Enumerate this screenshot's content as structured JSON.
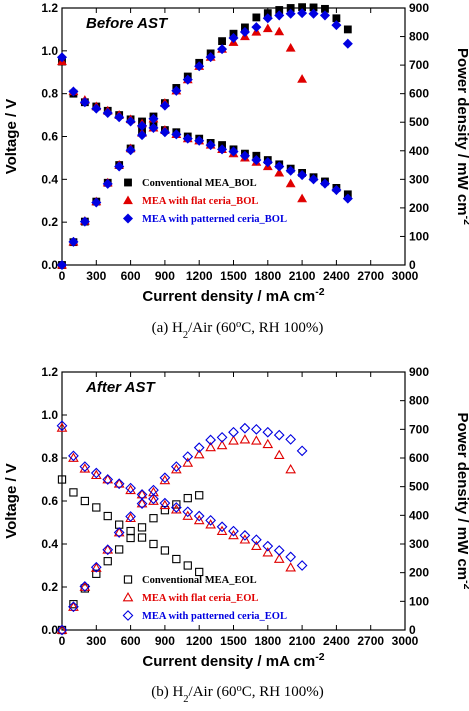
{
  "chart_data": [
    {
      "type": "scatter",
      "panel_label": "Before AST",
      "caption": {
        "pre": "(a) H",
        "sub": "2",
        "mid": "/Air (60",
        "sup": "o",
        "post": "C, RH 100%)"
      },
      "xlabel": {
        "main": "Current density / mA cm",
        "sup": "-2"
      },
      "ylabel": "Voltage / V",
      "y2label": {
        "main": "Power density / mW cm",
        "sup": "-2"
      },
      "xlim": [
        0,
        3000
      ],
      "ylim": [
        0,
        1.2
      ],
      "y2lim": [
        0,
        900
      ],
      "xticks": [
        "0",
        "300",
        "600",
        "900",
        "1200",
        "1500",
        "1800",
        "2100",
        "2400",
        "2700",
        "3000"
      ],
      "yticks": [
        "0.0",
        "0.2",
        "0.4",
        "0.6",
        "0.8",
        "1.0",
        "1.2"
      ],
      "y2ticks": [
        "0",
        "100",
        "200",
        "300",
        "400",
        "500",
        "600",
        "700",
        "800",
        "900"
      ],
      "legend_position": "lower-right",
      "series": [
        {
          "name": "Conventional MEA_BOL",
          "marker": "square-filled",
          "color": "#000000",
          "x": [
            0,
            100,
            200,
            300,
            400,
            500,
            600,
            700,
            800,
            900,
            1000,
            1100,
            1200,
            1300,
            1400,
            1500,
            1600,
            1700,
            1800,
            1900,
            2000,
            2100,
            2200,
            2300,
            2400,
            2500
          ],
          "voltage": [
            0.95,
            0.8,
            0.76,
            0.74,
            0.72,
            0.7,
            0.68,
            0.67,
            0.65,
            0.63,
            0.62,
            0.6,
            0.59,
            0.57,
            0.56,
            0.54,
            0.52,
            0.51,
            0.49,
            0.47,
            0.45,
            0.43,
            0.41,
            0.39,
            0.36,
            0.33
          ],
          "power": [
            0,
            80,
            152,
            222,
            288,
            350,
            408,
            469,
            520,
            567,
            620,
            660,
            708,
            741,
            784,
            810,
            832,
            867,
            882,
            893,
            900,
            903,
            902,
            897,
            864,
            825
          ]
        },
        {
          "name": "MEA with flat ceria_BOL",
          "marker": "triangle-filled",
          "color": "#e00000",
          "x": [
            0,
            100,
            200,
            300,
            400,
            500,
            600,
            700,
            800,
            900,
            1000,
            1100,
            1200,
            1300,
            1400,
            1500,
            1600,
            1700,
            1800,
            1900,
            2000,
            2100
          ],
          "voltage": [
            0.95,
            0.81,
            0.77,
            0.74,
            0.72,
            0.7,
            0.68,
            0.66,
            0.64,
            0.63,
            0.61,
            0.59,
            0.58,
            0.56,
            0.54,
            0.52,
            0.5,
            0.48,
            0.46,
            0.43,
            0.38,
            0.31
          ],
          "power": [
            0,
            81,
            154,
            222,
            288,
            350,
            408,
            462,
            512,
            567,
            610,
            649,
            696,
            728,
            756,
            780,
            800,
            816,
            828,
            817,
            760,
            651
          ]
        },
        {
          "name": "MEA with patterned ceria_BOL",
          "marker": "diamond-filled",
          "color": "#0000e0",
          "x": [
            0,
            100,
            200,
            300,
            400,
            500,
            600,
            700,
            800,
            900,
            1000,
            1100,
            1200,
            1300,
            1400,
            1500,
            1600,
            1700,
            1800,
            1900,
            2000,
            2100,
            2200,
            2300,
            2400,
            2500
          ],
          "voltage": [
            0.97,
            0.81,
            0.76,
            0.73,
            0.71,
            0.69,
            0.67,
            0.65,
            0.64,
            0.62,
            0.61,
            0.59,
            0.58,
            0.56,
            0.54,
            0.53,
            0.51,
            0.49,
            0.48,
            0.46,
            0.44,
            0.42,
            0.4,
            0.38,
            0.35,
            0.31
          ],
          "power": [
            0,
            81,
            152,
            219,
            284,
            345,
            402,
            455,
            512,
            558,
            610,
            649,
            696,
            728,
            756,
            795,
            816,
            833,
            864,
            874,
            880,
            882,
            880,
            874,
            840,
            775
          ]
        }
      ]
    },
    {
      "type": "scatter",
      "panel_label": "After AST",
      "caption": {
        "pre": "(b) H",
        "sub": "2",
        "mid": "/Air (60",
        "sup": "o",
        "post": "C, RH 100%)"
      },
      "xlabel": {
        "main": "Current density / mA cm",
        "sup": "-2"
      },
      "ylabel": "Voltage / V",
      "y2label": {
        "main": "Power density / mW cm",
        "sup": "-2"
      },
      "xlim": [
        0,
        3000
      ],
      "ylim": [
        0,
        1.2
      ],
      "y2lim": [
        0,
        900
      ],
      "xticks": [
        "0",
        "300",
        "600",
        "900",
        "1200",
        "1500",
        "1800",
        "2100",
        "2400",
        "2700",
        "3000"
      ],
      "yticks": [
        "0.0",
        "0.2",
        "0.4",
        "0.6",
        "0.8",
        "1.0",
        "1.2"
      ],
      "y2ticks": [
        "0",
        "100",
        "200",
        "300",
        "400",
        "500",
        "600",
        "700",
        "800",
        "900"
      ],
      "legend_position": "lower-right",
      "series": [
        {
          "name": "Conventional MEA_EOL",
          "marker": "square-open",
          "color": "#000000",
          "x": [
            0,
            100,
            200,
            300,
            400,
            500,
            600,
            700,
            800,
            900,
            1000,
            1100,
            1200
          ],
          "voltage": [
            0.7,
            0.64,
            0.6,
            0.57,
            0.53,
            0.49,
            0.46,
            0.43,
            0.4,
            0.37,
            0.33,
            0.3,
            0.27
          ],
          "power": [
            0,
            90,
            145,
            196,
            240,
            281,
            321,
            358,
            390,
            418,
            438,
            460,
            470
          ]
        },
        {
          "name": "MEA with flat ceria_EOL",
          "marker": "triangle-open",
          "color": "#e00000",
          "x": [
            0,
            100,
            200,
            300,
            400,
            500,
            600,
            700,
            800,
            900,
            1000,
            1100,
            1200,
            1300,
            1400,
            1500,
            1600,
            1700,
            1800,
            1900,
            2000
          ],
          "voltage": [
            0.94,
            0.8,
            0.75,
            0.72,
            0.7,
            0.68,
            0.65,
            0.63,
            0.6,
            0.58,
            0.56,
            0.53,
            0.51,
            0.49,
            0.46,
            0.44,
            0.42,
            0.39,
            0.36,
            0.33,
            0.29
          ],
          "power": [
            0,
            80,
            150,
            216,
            280,
            340,
            390,
            441,
            480,
            522,
            560,
            583,
            612,
            637,
            644,
            660,
            664,
            660,
            648,
            610,
            560
          ]
        },
        {
          "name": "MEA with patterned ceria_EOL",
          "marker": "diamond-open",
          "color": "#0000e0",
          "x": [
            0,
            100,
            200,
            300,
            400,
            500,
            600,
            700,
            800,
            900,
            1000,
            1100,
            1200,
            1300,
            1400,
            1500,
            1600,
            1700,
            1800,
            1900,
            2000,
            2100
          ],
          "voltage": [
            0.95,
            0.81,
            0.76,
            0.73,
            0.7,
            0.68,
            0.66,
            0.63,
            0.61,
            0.59,
            0.57,
            0.55,
            0.53,
            0.51,
            0.48,
            0.46,
            0.44,
            0.42,
            0.39,
            0.37,
            0.34,
            0.3
          ],
          "power": [
            0,
            81,
            152,
            219,
            280,
            340,
            396,
            441,
            488,
            531,
            570,
            605,
            636,
            663,
            672,
            690,
            704,
            700,
            690,
            680,
            665,
            625
          ]
        }
      ]
    }
  ]
}
